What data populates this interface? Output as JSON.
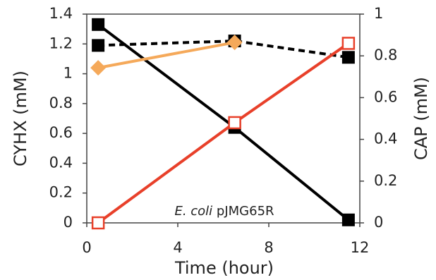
{
  "chart_data": {
    "type": "line",
    "x_label": "Time (hour)",
    "y_label": "CYHX (mM)",
    "y2_label": "CAP (mM)",
    "annotation": {
      "italic": "E. coli",
      "text": "pJMG65R"
    },
    "xlim": [
      0,
      12
    ],
    "xticks": [
      0,
      4,
      8,
      12
    ],
    "ylim": [
      0,
      1.4
    ],
    "yticks": [
      0,
      0.2,
      0.4,
      0.6,
      0.8,
      1,
      1.2,
      1.4
    ],
    "y2lim": [
      0,
      1
    ],
    "y2ticks": [
      0,
      0.2,
      0.4,
      0.6,
      0.8,
      1
    ],
    "series": [
      {
        "color": "#000000",
        "marker": "square",
        "dash": false,
        "x": [
          0.5,
          6.5,
          11.5
        ],
        "values": [
          1.33,
          0.64,
          0.02
        ]
      },
      {
        "color": "#000000",
        "marker": "square",
        "dash": true,
        "x": [
          0.5,
          6.5,
          11.5
        ],
        "values": [
          1.19,
          1.22,
          1.11
        ]
      },
      {
        "color": "#f5a95a",
        "marker": "diamond",
        "dash": false,
        "x": [
          0.5,
          6.5
        ],
        "values": [
          1.04,
          1.21
        ]
      },
      {
        "color": "#e8402a",
        "marker": "open-square",
        "dash": false,
        "axis": "y2",
        "x": [
          0.5,
          6.5,
          11.5
        ],
        "values": [
          0,
          0.48,
          0.86
        ]
      }
    ]
  }
}
